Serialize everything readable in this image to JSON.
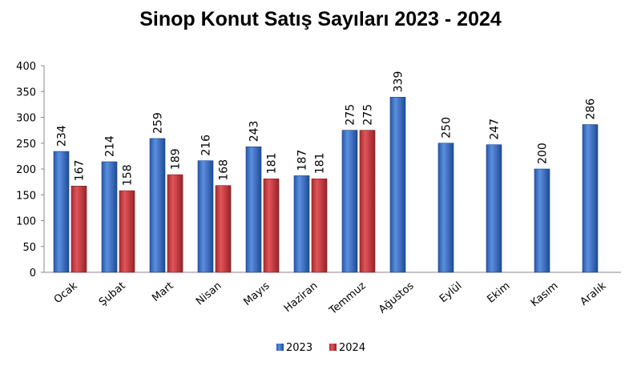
{
  "chart_data": {
    "type": "bar",
    "title": "Sinop Konut Satış Sayıları  2023 - 2024",
    "xlabel": "",
    "ylabel": "",
    "ylim": [
      0,
      400
    ],
    "yticks": [
      0,
      50,
      100,
      150,
      200,
      250,
      300,
      350,
      400
    ],
    "grid": false,
    "legend": "bottom",
    "categories": [
      "Ocak",
      "Şubat",
      "Mart",
      "Nisan",
      "Mayıs",
      "Haziran",
      "Temmuz",
      "Ağustos",
      "Eylül",
      "Ekim",
      "Kasım",
      "Aralık"
    ],
    "series": [
      {
        "name": "2023",
        "color": "#3a6fc4",
        "values": [
          234,
          214,
          259,
          216,
          243,
          187,
          275,
          339,
          250,
          247,
          200,
          286
        ]
      },
      {
        "name": "2024",
        "color": "#c8353a",
        "values": [
          167,
          158,
          189,
          168,
          181,
          181,
          275,
          null,
          null,
          null,
          null,
          null
        ]
      }
    ]
  }
}
